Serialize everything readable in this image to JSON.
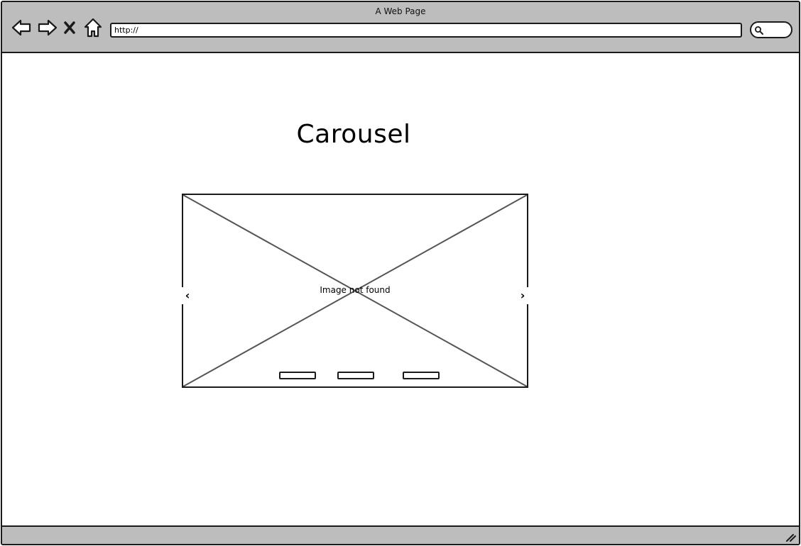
{
  "window": {
    "title": "A Web Page"
  },
  "toolbar": {
    "back_icon": "back-arrow-icon",
    "forward_icon": "forward-arrow-icon",
    "stop_icon": "close-icon",
    "home_icon": "home-icon",
    "url_value": "http://",
    "search_icon": "search-icon"
  },
  "main": {
    "title": "Carousel",
    "carousel": {
      "image_placeholder_text": "Image not found",
      "prev_label": "‹",
      "next_label": "›",
      "indicator_count": 3
    }
  },
  "colors": {
    "chrome": "#bdbdbd",
    "stroke": "#1a1a1a",
    "placeholder_lines": "#555555"
  }
}
